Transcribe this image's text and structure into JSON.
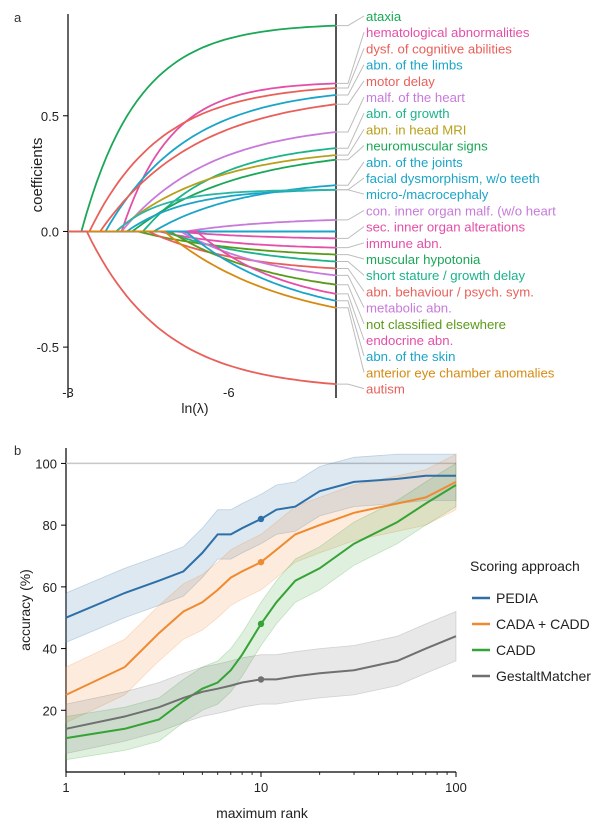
{
  "panels": {
    "a": "a",
    "b": "b"
  },
  "chart_data": [
    {
      "type": "line",
      "panel": "a",
      "xlabel": "ln(λ)",
      "ylabel": "coefficients",
      "xticks": [
        {
          "v": -3,
          "label": "-3"
        },
        {
          "v": -6,
          "label": "-6"
        }
      ],
      "yticks": [
        {
          "v": 0.5,
          "label": "0.5"
        },
        {
          "v": 0.0,
          "label": "0.0"
        },
        {
          "v": -0.5,
          "label": "-0.5"
        }
      ],
      "xlim": [
        -3,
        -8
      ],
      "ylim": [
        -0.72,
        0.94
      ],
      "series": [
        {
          "name": "ataxia",
          "color": "#1aa757",
          "start": -3.25,
          "final": 0.89,
          "k": 0.95
        },
        {
          "name": "hematological abnormalities",
          "color": "#e44fa8",
          "start": -4.0,
          "final": 0.64,
          "k": 1.1
        },
        {
          "name": "dysf. of cognitive abilities",
          "color": "#e8605a",
          "start": -3.4,
          "final": 0.62,
          "k": 0.75
        },
        {
          "name": "abn. of the limbs",
          "color": "#1aa5c8",
          "start": -3.7,
          "final": 0.59,
          "k": 0.65
        },
        {
          "name": "motor delay",
          "color": "#e8605a",
          "start": -3.6,
          "final": 0.55,
          "k": 0.55
        },
        {
          "name": "malf. of the heart",
          "color": "#c77adb",
          "start": -4.0,
          "final": 0.43,
          "k": 0.6
        },
        {
          "name": "abn. of growth",
          "color": "#1bb38a",
          "start": -4.4,
          "final": 0.36,
          "k": 0.7
        },
        {
          "name": "abn. in head MRI",
          "color": "#b8a01a",
          "start": -3.9,
          "final": 0.33,
          "k": 0.55
        },
        {
          "name": "neuromuscular signs",
          "color": "#1aa757",
          "start": -4.2,
          "final": 0.31,
          "k": 0.5
        },
        {
          "name": "abn. of the joints",
          "color": "#1aa5c8",
          "start": -4.6,
          "final": 0.2,
          "k": 0.6
        },
        {
          "name": "facial dysmorphism, w/o teeth",
          "color": "#1aa5c8",
          "start": -4.1,
          "final": 0.18,
          "k": 0.9
        },
        {
          "name": "micro-/macrocephaly",
          "color": "#2bb5a5",
          "start": -3.9,
          "final": 0.18,
          "k": 1.2
        },
        {
          "name": "con. inner organ malf. (w/o heart",
          "color": "#c77adb",
          "start": -5.2,
          "final": 0.05,
          "k": 0.6
        },
        {
          "name": "sec. inner organ alterations",
          "color": "#e44fa8",
          "start": -5.0,
          "final": -0.03,
          "k": 0.6
        },
        {
          "name": "immune abn.",
          "color": "#e44fa8",
          "start": -4.7,
          "final": -0.07,
          "k": 0.7
        },
        {
          "name": "muscular hypotonia",
          "color": "#5a9a1a",
          "start": -4.3,
          "final": -0.1,
          "k": 0.5
        },
        {
          "name": "short stature / growth delay",
          "color": "#1bb38a",
          "start": -4.8,
          "final": -0.13,
          "k": 0.55
        },
        {
          "name": "abn. behaviour / psych. sym.",
          "color": "#e8605a",
          "start": -4.5,
          "final": -0.16,
          "k": 0.6
        },
        {
          "name": "metabolic abn.",
          "color": "#c77adb",
          "start": -5.1,
          "final": -0.19,
          "k": 0.55
        },
        {
          "name": "not classified elsewhere",
          "color": "#5a9a1a",
          "start": -4.9,
          "final": -0.23,
          "k": 0.5
        },
        {
          "name": "endocrine abn.",
          "color": "#e44fa8",
          "start": -5.4,
          "final": -0.27,
          "k": 0.6
        },
        {
          "name": "abn. of the skin",
          "color": "#1aa5c8",
          "start": -5.2,
          "final": -0.3,
          "k": 0.5
        },
        {
          "name": "anterior eye chamber anomalies",
          "color": "#d68a10",
          "start": -4.8,
          "final": -0.33,
          "k": 0.45
        },
        {
          "name": "autism",
          "color": "#e8605a",
          "start": -3.35,
          "final": -0.66,
          "k": 0.7
        }
      ],
      "label_colors": [
        "#1aa757",
        "#e44fa8",
        "#e8605a",
        "#1aa5c8",
        "#e8605a",
        "#c77adb",
        "#1bb38a",
        "#b8a01a",
        "#1aa757",
        "#1aa5c8",
        "#1aa5c8",
        "#1aa5c8",
        "#c77adb",
        "#e44fa8",
        "#e44fa8",
        "#1aa757",
        "#1bb38a",
        "#e8605a",
        "#c77adb",
        "#5a9a1a",
        "#e44fa8",
        "#1aa5c8",
        "#d68a10",
        "#e8605a"
      ]
    },
    {
      "type": "line",
      "panel": "b",
      "xscale": "log",
      "xlabel": "maximum rank",
      "ylabel": "accuracy (%)",
      "xlim": [
        1,
        100
      ],
      "ylim": [
        0,
        105
      ],
      "xticks": [
        {
          "v": 1,
          "label": "1"
        },
        {
          "v": 10,
          "label": "10"
        },
        {
          "v": 100,
          "label": "100"
        }
      ],
      "yticks": [
        {
          "v": 20,
          "label": "20"
        },
        {
          "v": 40,
          "label": "40"
        },
        {
          "v": 60,
          "label": "60"
        },
        {
          "v": 80,
          "label": "80"
        },
        {
          "v": 100,
          "label": "100"
        }
      ],
      "reference_line": 100,
      "legend_title": "Scoring approach",
      "legend_position": "right",
      "series": [
        {
          "name": "PEDIA",
          "color": "#2e6fa8",
          "x": [
            1,
            2,
            3,
            4,
            5,
            6,
            7,
            8,
            10,
            12,
            15,
            20,
            30,
            50,
            70,
            100
          ],
          "y": [
            50,
            58,
            62,
            65,
            71,
            77,
            77,
            79,
            82,
            85,
            86,
            91,
            94,
            95,
            96,
            96
          ],
          "band": 8,
          "marker": {
            "x": 10,
            "y": 82
          }
        },
        {
          "name": "CADA + CADD",
          "color": "#f08a30",
          "x": [
            1,
            2,
            3,
            4,
            5,
            6,
            7,
            8,
            10,
            12,
            15,
            20,
            30,
            50,
            70,
            100
          ],
          "y": [
            25,
            34,
            45,
            52,
            55,
            59,
            63,
            65,
            68,
            72,
            77,
            80,
            84,
            87,
            89,
            94
          ],
          "band": 9,
          "marker": {
            "x": 10,
            "y": 68
          }
        },
        {
          "name": "CADD",
          "color": "#36a336",
          "x": [
            1,
            2,
            3,
            4,
            5,
            6,
            7,
            8,
            10,
            12,
            15,
            20,
            30,
            50,
            70,
            100
          ],
          "y": [
            11,
            14,
            17,
            23,
            27,
            29,
            33,
            38,
            48,
            55,
            62,
            66,
            74,
            81,
            87,
            93
          ],
          "band": 7,
          "marker": {
            "x": 10,
            "y": 48
          }
        },
        {
          "name": "GestaltMatcher",
          "color": "#707070",
          "x": [
            1,
            2,
            3,
            4,
            5,
            6,
            7,
            8,
            10,
            12,
            15,
            20,
            30,
            50,
            70,
            100
          ],
          "y": [
            14,
            18,
            21,
            24,
            26,
            27,
            28,
            29,
            30,
            30,
            31,
            32,
            33,
            36,
            40,
            44
          ],
          "band": 8,
          "marker": {
            "x": 10,
            "y": 30
          }
        }
      ]
    }
  ]
}
